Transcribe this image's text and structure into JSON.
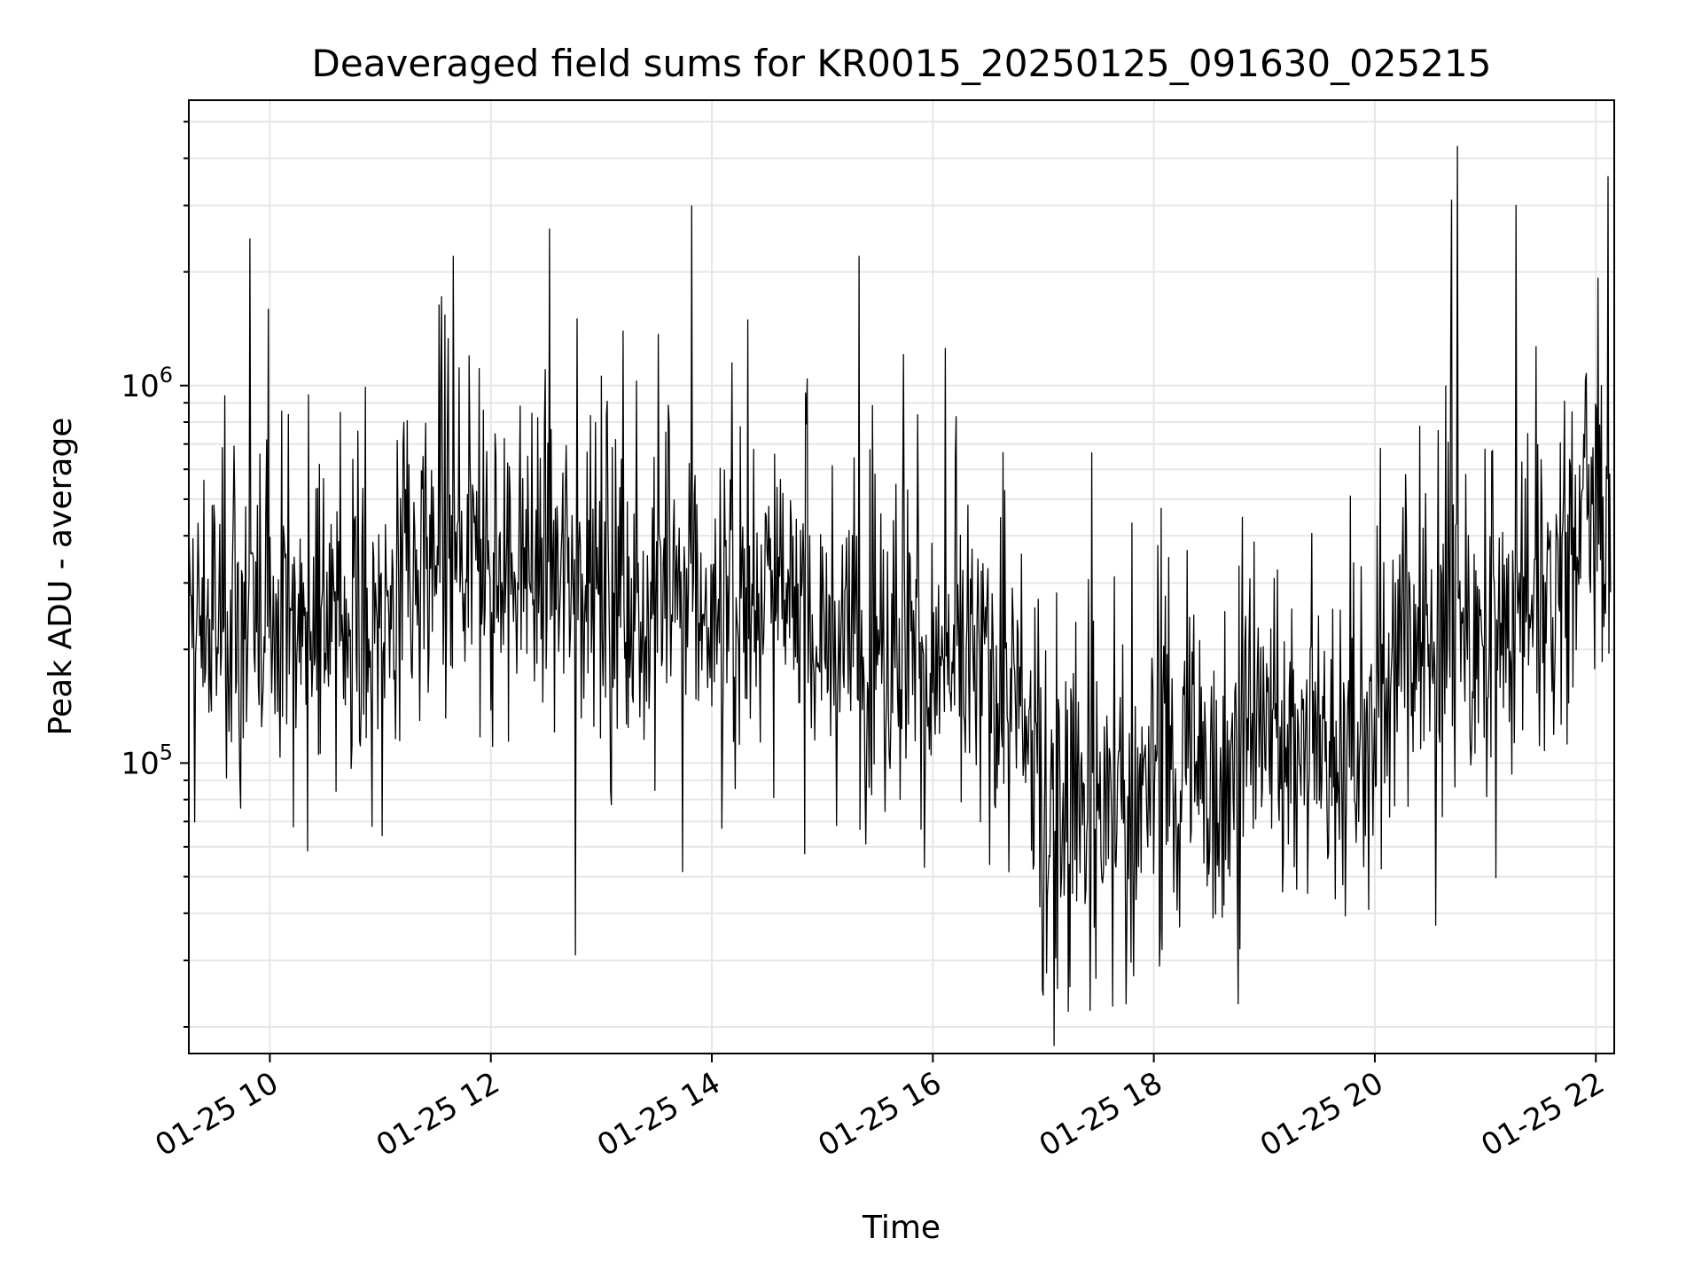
{
  "chart_data": {
    "type": "line",
    "title": "Deaveraged field sums for KR0015_20250125_091630_025215",
    "xlabel": "Time",
    "ylabel": "Peak ADU - average",
    "yscale": "log",
    "grid": true,
    "xlim": [
      "01-25 09:16",
      "01-25 22:10"
    ],
    "ylim": [
      17000,
      5700000
    ],
    "x_tick_labels": [
      "01-25 10",
      "01-25 12",
      "01-25 14",
      "01-25 16",
      "01-25 18",
      "01-25 20",
      "01-25 22"
    ],
    "x_tick_hours": [
      10,
      12,
      14,
      16,
      18,
      20,
      22
    ],
    "y_tick_labels": [
      {
        "base": "10",
        "exp": "5",
        "value": 100000
      },
      {
        "base": "10",
        "exp": "6",
        "value": 1000000
      }
    ],
    "series": [
      {
        "color": "#000000",
        "start_time": "01-25 09:16",
        "end_time": "01-25 22:08",
        "baseline_x": [
          9.27,
          10,
          11,
          11.5,
          12,
          12.5,
          13,
          13.5,
          14,
          14.5,
          15,
          15.5,
          16,
          16.5,
          16.8,
          17.0,
          17.3,
          17.7,
          18.0,
          18.5,
          19.0,
          19.5,
          19.9,
          20.2,
          20.6,
          21.0,
          21.5,
          21.8,
          22.13
        ],
        "baseline_y": [
          230000,
          240000,
          240000,
          300000,
          330000,
          340000,
          300000,
          270000,
          260000,
          270000,
          230000,
          210000,
          180000,
          180000,
          130000,
          65000,
          80000,
          70000,
          90000,
          100000,
          120000,
          110000,
          100000,
          200000,
          220000,
          210000,
          270000,
          420000,
          550000
        ],
        "peaks": [
          {
            "time": "01-25 12:32",
            "value": 2600000
          },
          {
            "time": "01-25 20:45",
            "value": 4300000
          },
          {
            "time": "01-25 20:42",
            "value": 3100000
          },
          {
            "time": "01-25 21:17",
            "value": 3000000
          },
          {
            "time": "01-25 15:20",
            "value": 2200000
          },
          {
            "time": "01-25 11:40",
            "value": 2200000
          },
          {
            "time": "01-25 17:14",
            "value": 22000
          },
          {
            "time": "01-25 12:46",
            "value": 31000
          }
        ]
      }
    ]
  }
}
